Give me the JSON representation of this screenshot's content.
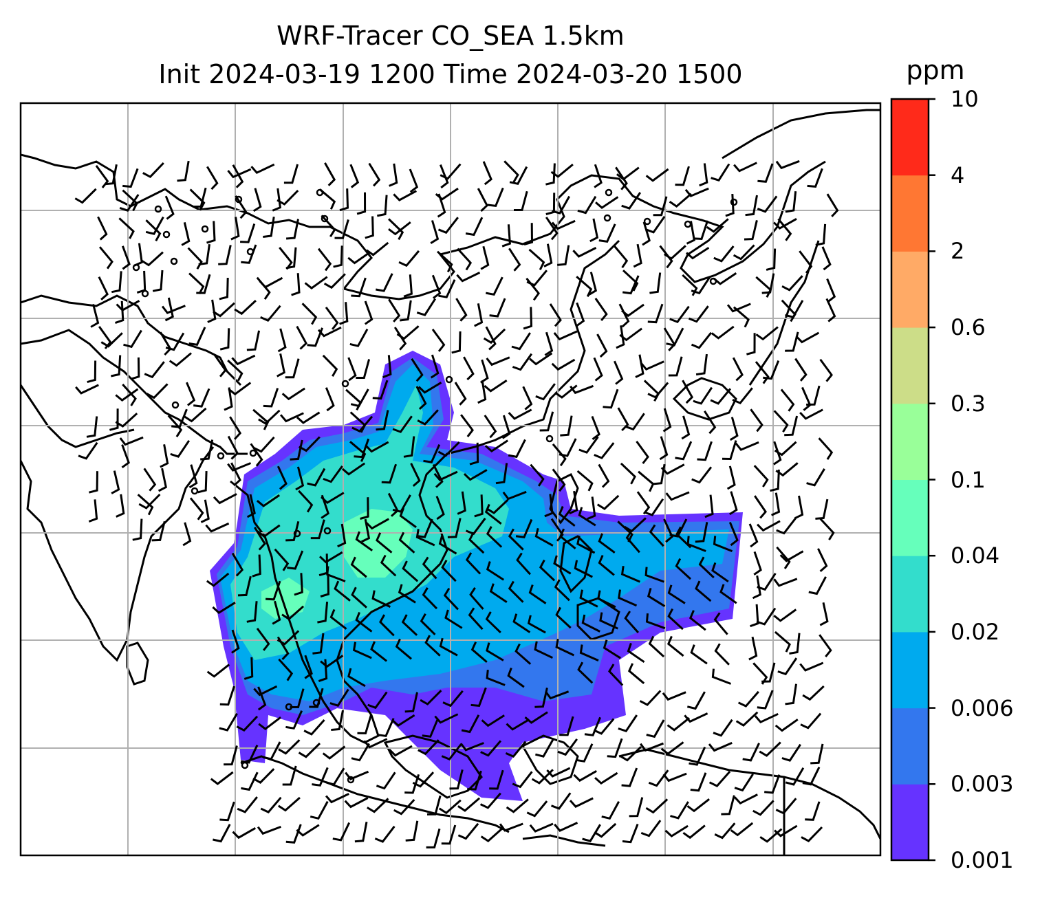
{
  "title": {
    "line1": "WRF-Tracer CO_SEA 1.5km",
    "line2": "Init 2024-03-19 1200 Time 2024-03-20 1500"
  },
  "colorbar": {
    "unit": "ppm",
    "levels": [
      "0.001",
      "0.003",
      "0.006",
      "0.02",
      "0.04",
      "0.1",
      "0.3",
      "0.6",
      "2",
      "4",
      "10"
    ],
    "colors": [
      "#6633ff",
      "#3377ee",
      "#00aaee",
      "#33ddcc",
      "#66ffbb",
      "#99ff99",
      "#ccdd88",
      "#ffaa66",
      "#ff7733",
      "#ff2a1a"
    ]
  },
  "map": {
    "gridlines": true,
    "fields": [
      "CO tracer concentration",
      "wind barbs"
    ]
  }
}
